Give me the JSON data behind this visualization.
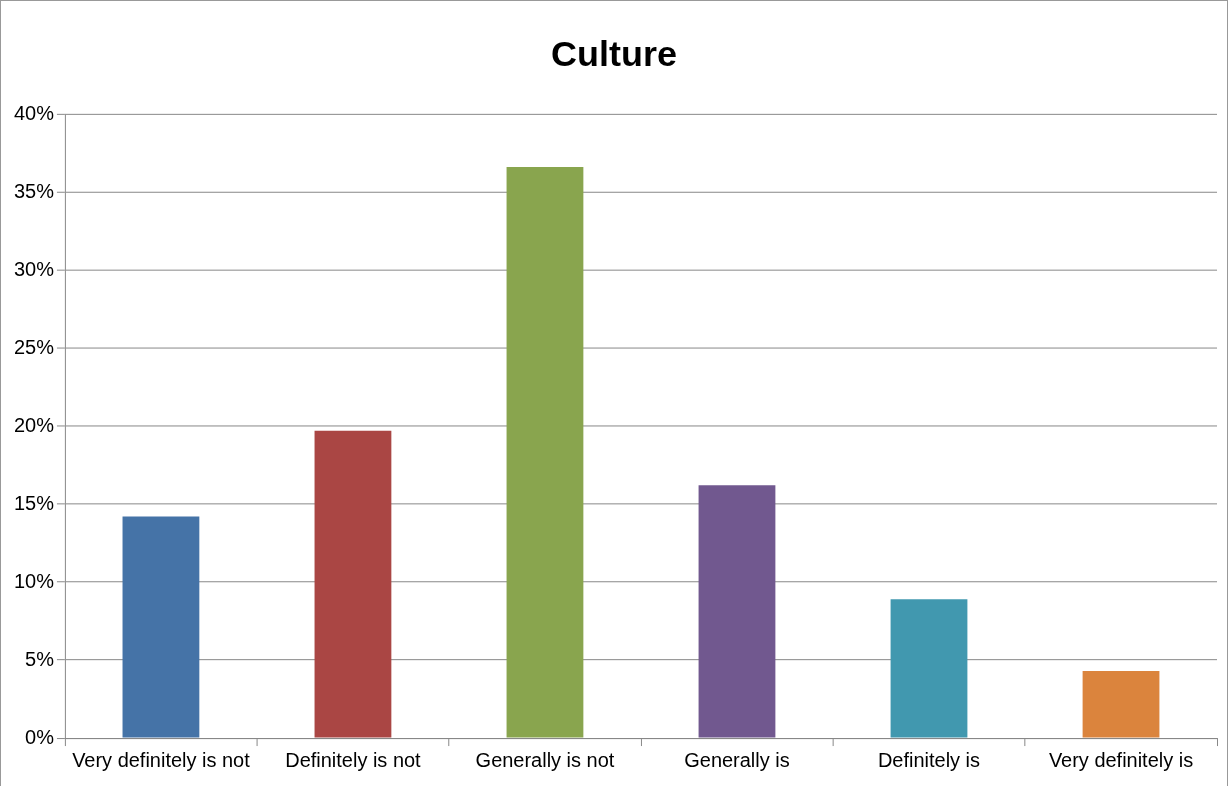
{
  "chart_data": {
    "type": "bar",
    "title": "Culture",
    "categories": [
      "Very definitely is not",
      "Definitely is not",
      "Generally is not",
      "Generally is",
      "Definitely is",
      "Very definitely is"
    ],
    "values": [
      14.2,
      19.7,
      36.6,
      16.2,
      8.9,
      4.3
    ],
    "colors": [
      "#4573a7",
      "#aa4644",
      "#89a54e",
      "#71588f",
      "#4198af",
      "#db843d"
    ],
    "ylim": [
      0,
      40
    ],
    "yticks": [
      {
        "value": 0,
        "label": "0%"
      },
      {
        "value": 5,
        "label": "5%"
      },
      {
        "value": 10,
        "label": "10%"
      },
      {
        "value": 15,
        "label": "15%"
      },
      {
        "value": 20,
        "label": "20%"
      },
      {
        "value": 25,
        "label": "25%"
      },
      {
        "value": 30,
        "label": "30%"
      },
      {
        "value": 35,
        "label": "35%"
      },
      {
        "value": 40,
        "label": "40%"
      }
    ],
    "grid": "y",
    "legend": false
  }
}
